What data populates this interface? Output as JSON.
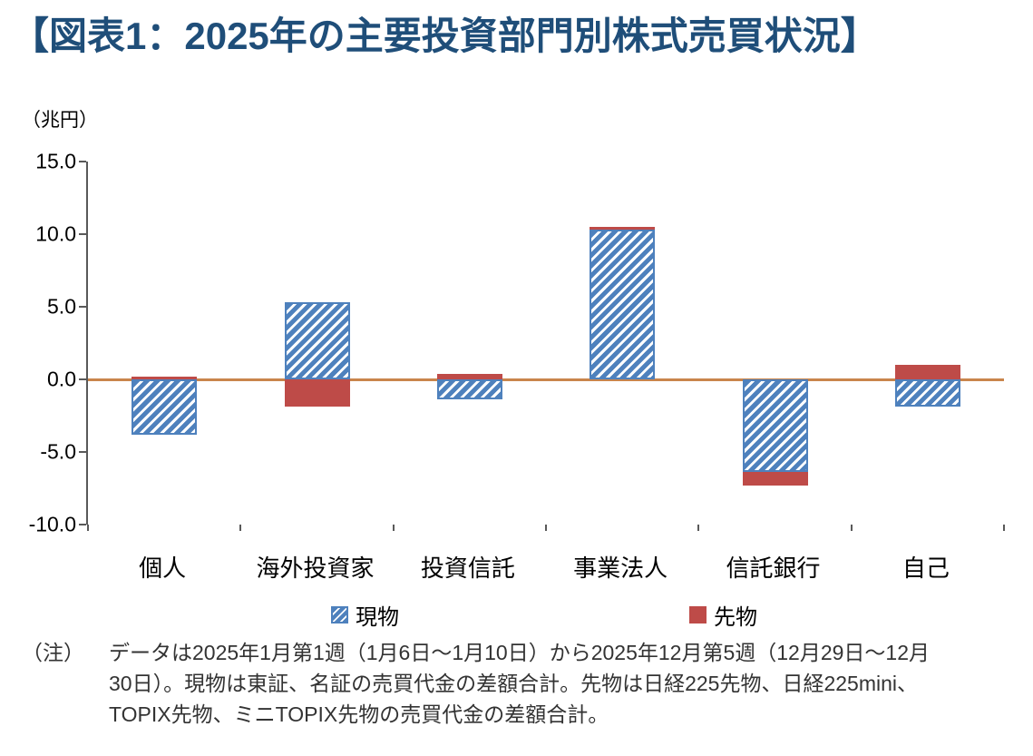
{
  "title": "【図表1：2025年の主要投資部門別株式売買状況】",
  "title_color": "#1F4E79",
  "chart_data": {
    "type": "bar",
    "stacked": true,
    "unit_label": "（兆円）",
    "categories": [
      "個人",
      "海外投資家",
      "投資信託",
      "事業法人",
      "信託銀行",
      "自己"
    ],
    "series": [
      {
        "name": "現物",
        "key": "spot",
        "style": "hatched",
        "color": "#4E81BD",
        "values": [
          -3.8,
          5.3,
          -1.4,
          10.3,
          -6.4,
          -1.9
        ]
      },
      {
        "name": "先物",
        "key": "futures",
        "style": "solid",
        "color": "#BE4B48",
        "values": [
          0.2,
          -1.9,
          0.4,
          0.2,
          -0.9,
          1.0
        ]
      }
    ],
    "ylim": [
      -10,
      15
    ],
    "ytick_step": 5,
    "yticks": [
      "15.0",
      "10.0",
      "5.0",
      "0.0",
      "-5.0",
      "-10.0"
    ],
    "zero_line_color": "#C9854C",
    "axis_color": "#595959",
    "legend_position": "bottom",
    "grid": false
  },
  "note": {
    "label": "（注）",
    "text": "データは2025年1月第1週（1月6日～1月10日）から2025年12月第5週（12月29日～12月30日）。現物は東証、名証の売買代金の差額合計。先物は日経225先物、日経225mini、TOPIX先物、ミニTOPIX先物の売買代金の差額合計。"
  }
}
